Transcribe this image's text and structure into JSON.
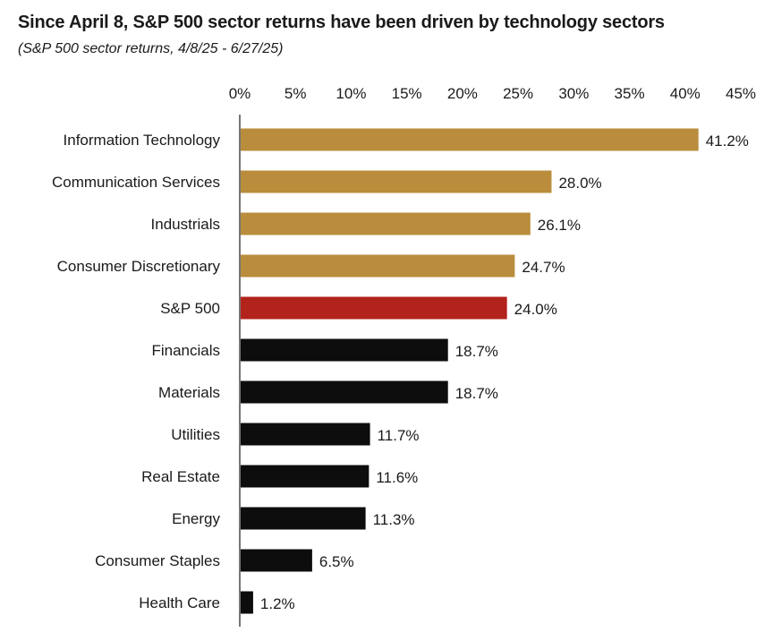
{
  "chart_data": {
    "type": "bar",
    "orientation": "horizontal",
    "title": "Since April 8, S&P 500 sector returns have been driven by technology sectors",
    "subtitle": "(S&P 500 sector returns, 4/8/25 - 6/27/25)",
    "xlabel": "",
    "ylabel": "",
    "xlim": [
      0,
      45
    ],
    "ticks": [
      0,
      5,
      10,
      15,
      20,
      25,
      30,
      35,
      40,
      45
    ],
    "tick_labels": [
      "0%",
      "5%",
      "10%",
      "15%",
      "20%",
      "25%",
      "30%",
      "35%",
      "40%",
      "45%"
    ],
    "axis_position": "top",
    "grid": false,
    "categories": [
      "Information Technology",
      "Communication Services",
      "Industrials",
      "Consumer Discretionary",
      "S&P 500",
      "Financials",
      "Materials",
      "Utilities",
      "Real Estate",
      "Energy",
      "Consumer Staples",
      "Health Care"
    ],
    "values": [
      41.2,
      28.0,
      26.1,
      24.7,
      24.0,
      18.7,
      18.7,
      11.7,
      11.6,
      11.3,
      6.5,
      1.2
    ],
    "value_labels": [
      "41.2%",
      "28.0%",
      "26.1%",
      "24.7%",
      "24.0%",
      "18.7%",
      "18.7%",
      "11.7%",
      "11.6%",
      "11.3%",
      "6.5%",
      "1.2%"
    ],
    "bar_colors": [
      "#b98d3c",
      "#b98d3c",
      "#b98d3c",
      "#b98d3c",
      "#b2231c",
      "#0d0d0d",
      "#0d0d0d",
      "#0d0d0d",
      "#0d0d0d",
      "#0d0d0d",
      "#0d0d0d",
      "#0d0d0d"
    ]
  }
}
